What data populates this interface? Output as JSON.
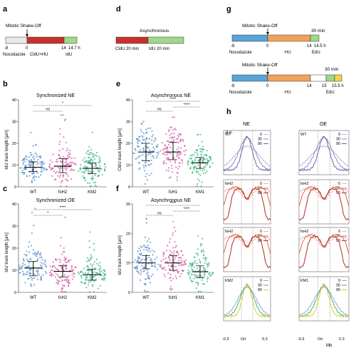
{
  "panels": {
    "a": {
      "letter": "a",
      "event": "Mitotic Shake-Off",
      "segments": [
        "Nocodazole",
        "CldU+HU",
        "IdU"
      ],
      "ticks": [
        "-8",
        "0",
        "14",
        "14.7 h"
      ],
      "colors": {
        "noco": "#e8e8e8",
        "cldu": "#c8312b",
        "idu": "#9fd88a"
      }
    },
    "d": {
      "letter": "d",
      "title": "Asynchronous",
      "segments": [
        "CldU 20 min",
        "IdU 20 min"
      ],
      "colors": {
        "cldu": "#c8312b",
        "idu": "#9fd88a"
      }
    },
    "g": {
      "letter": "g",
      "top": {
        "event": "Mitotic Shake-Off",
        "segments": [
          "Nocodazole",
          "HU",
          "EdU"
        ],
        "ticks": [
          "-8",
          "0",
          "14",
          "14.5 h"
        ],
        "duration": "30 min"
      },
      "bottom": {
        "event": "Mitotic Shake-Off",
        "segments": [
          "Nocodazole",
          "HU",
          "EdU"
        ],
        "ticks": [
          "-8",
          "0",
          "14",
          "15",
          "15.5 h"
        ],
        "duration": "30 min"
      },
      "colors": {
        "noco": "#5aa3d8",
        "hu": "#f2a25a",
        "edu": "#9fd88a",
        "edu2": "#f4d24b"
      }
    },
    "b": {
      "letter": "b",
      "title": "Synchronized NE",
      "ylabel": "IdU track length [µm]",
      "categories": [
        "WT",
        "fsH2",
        "KM2"
      ],
      "sig": [
        "ns",
        "*"
      ]
    },
    "c": {
      "letter": "c",
      "title": "Synchronized OE",
      "ylabel": "IdU track length [µm]",
      "categories": [
        "WT",
        "fsH2",
        "KM2"
      ],
      "sig": [
        "*",
        "****"
      ]
    },
    "e": {
      "letter": "e",
      "title": "Asynchronous NE",
      "ylabel": "CldU track length [µm]",
      "categories": [
        "WT",
        "fsH1",
        "KM1"
      ],
      "sig": [
        "ns",
        "****",
        "****"
      ]
    },
    "f": {
      "letter": "f",
      "title": "Asynchronous NE",
      "ylabel": "IdU track length [µm]",
      "categories": [
        "WT",
        "fsH1",
        "KM1"
      ],
      "sig": [
        "ns",
        "****",
        "****"
      ]
    },
    "h": {
      "letter": "h",
      "col_titles": [
        "NE",
        "OE"
      ],
      "ylabel": "a.u.",
      "xlabel": "Mb",
      "xticks": [
        "-0.3",
        "Ori",
        "0.3"
      ],
      "legend": [
        "0",
        "30",
        "90"
      ],
      "rows": [
        {
          "left": "WT",
          "right": "WT"
        },
        {
          "left": "fsH2",
          "right": "fsH2"
        },
        {
          "left": "fsH2",
          "right": "fsH2"
        },
        {
          "left": "KM2",
          "right": "KM1"
        }
      ]
    }
  },
  "chart_data": [
    {
      "id": "b",
      "type": "scatter",
      "title": "Synchronized NE",
      "ylabel": "IdU track length [µm]",
      "categories": [
        "WT",
        "fsH2",
        "KM2"
      ],
      "ylim": [
        0,
        40
      ],
      "yticks": [
        0,
        10,
        20,
        30,
        40
      ],
      "median": [
        9,
        9.5,
        8.5
      ],
      "q1": [
        7,
        6.5,
        6
      ],
      "q3": [
        11.5,
        13,
        11
      ],
      "max": [
        25,
        33,
        36
      ],
      "colors": [
        "#4a86c8",
        "#d04ea0",
        "#2fb07a"
      ]
    },
    {
      "id": "c",
      "type": "scatter",
      "title": "Synchronized OE",
      "ylabel": "IdU track length [µm]",
      "categories": [
        "WT",
        "fsH2",
        "KM2"
      ],
      "ylim": [
        0,
        40
      ],
      "yticks": [
        0,
        10,
        20,
        30,
        40
      ],
      "median": [
        11,
        9.5,
        8
      ],
      "q1": [
        7.5,
        7,
        5.5
      ],
      "q3": [
        14,
        12,
        10.5
      ],
      "max": [
        38,
        34,
        28
      ],
      "colors": [
        "#4a86c8",
        "#d04ea0",
        "#2fb07a"
      ]
    },
    {
      "id": "e",
      "type": "scatter",
      "title": "Asynchronous NE",
      "ylabel": "CldU track length [µm]",
      "categories": [
        "WT",
        "fsH1",
        "KM1"
      ],
      "ylim": [
        0,
        40
      ],
      "yticks": [
        0,
        10,
        20,
        30,
        40
      ],
      "median": [
        16,
        16,
        11
      ],
      "q1": [
        12,
        12.5,
        8.5
      ],
      "q3": [
        20,
        20.5,
        13.5
      ],
      "max": [
        30,
        32,
        24
      ],
      "colors": [
        "#4a86c8",
        "#d04ea0",
        "#2fb07a"
      ]
    },
    {
      "id": "f",
      "type": "scatter",
      "title": "Asynchronous NE",
      "ylabel": "IdU track length [µm]",
      "categories": [
        "WT",
        "fsH1",
        "KM1"
      ],
      "ylim": [
        0,
        30
      ],
      "yticks": [
        0,
        10,
        20,
        30
      ],
      "median": [
        10,
        10,
        7
      ],
      "q1": [
        8,
        7.5,
        5
      ],
      "q3": [
        12.5,
        12.5,
        9
      ],
      "max": [
        25,
        24,
        20
      ],
      "colors": [
        "#4a86c8",
        "#d04ea0",
        "#2fb07a"
      ]
    }
  ]
}
